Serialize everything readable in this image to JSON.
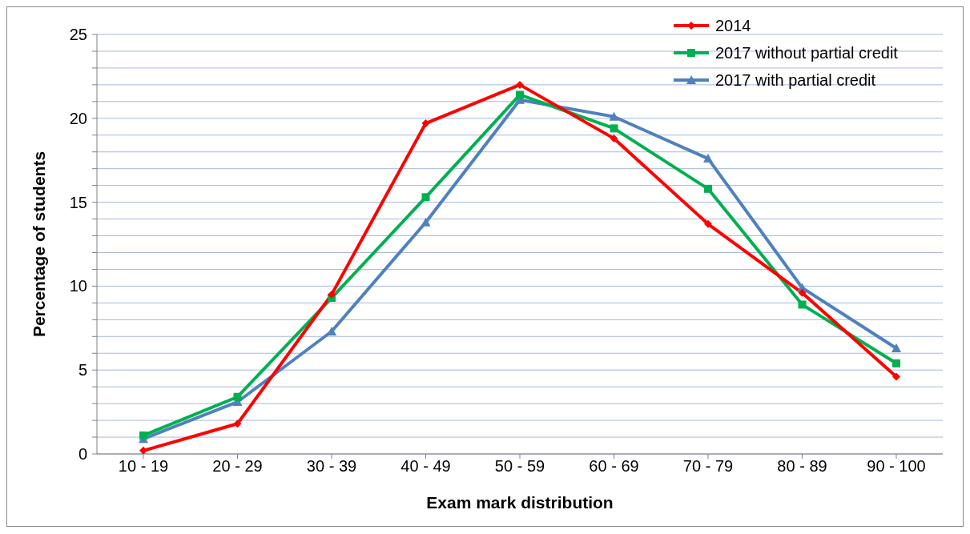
{
  "chart_data": {
    "type": "line",
    "xlabel": "Exam mark distribution",
    "ylabel": "Percentage of students",
    "categories": [
      "10 - 19",
      "20 - 29",
      "30 - 39",
      "40 - 49",
      "50 - 59",
      "60 - 69",
      "70 - 79",
      "80 - 89",
      "90 - 100"
    ],
    "series": [
      {
        "name": "2014",
        "color": "#ff0000",
        "marker": "diamond",
        "values": [
          0.2,
          1.8,
          9.5,
          19.7,
          22.0,
          18.8,
          13.7,
          9.6,
          4.6
        ]
      },
      {
        "name": "2017 without partial credit",
        "color": "#00b050",
        "marker": "square",
        "values": [
          1.1,
          3.4,
          9.3,
          15.3,
          21.4,
          19.4,
          15.8,
          8.9,
          5.4
        ]
      },
      {
        "name": "2017 with partial credit",
        "color": "#4f81bd",
        "marker": "triangle",
        "values": [
          0.9,
          3.1,
          7.3,
          13.8,
          21.1,
          20.1,
          17.6,
          9.9,
          6.3
        ]
      }
    ],
    "ylim": [
      0,
      25
    ],
    "yticks": [
      0,
      {
        "value": 1,
        "label": null
      },
      {
        "value": 2,
        "label": null
      },
      {
        "value": 3,
        "label": null
      },
      {
        "value": 4,
        "label": null
      },
      5,
      {
        "value": 6,
        "label": null
      },
      {
        "value": 7,
        "label": null
      },
      {
        "value": 8,
        "label": null
      },
      {
        "value": 9,
        "label": null
      },
      10,
      {
        "value": 11,
        "label": null
      },
      {
        "value": 12,
        "label": null
      },
      {
        "value": 13,
        "label": null
      },
      {
        "value": 14,
        "label": null
      },
      15,
      {
        "value": 16,
        "label": null
      },
      {
        "value": 17,
        "label": null
      },
      {
        "value": 18,
        "label": null
      },
      {
        "value": 19,
        "label": null
      },
      20,
      {
        "value": 21,
        "label": null
      },
      {
        "value": 22,
        "label": null
      },
      {
        "value": 23,
        "label": null
      },
      {
        "value": 24,
        "label": null
      },
      25
    ],
    "grid": "y",
    "legend": "top right",
    "line_style": "solid"
  }
}
